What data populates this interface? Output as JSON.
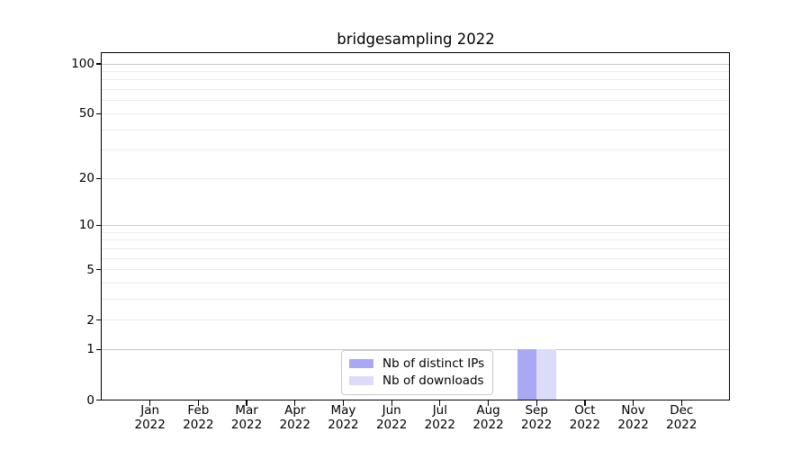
{
  "chart_data": {
    "type": "bar",
    "title": "bridgesampling 2022",
    "categories": [
      "Jan",
      "Feb",
      "Mar",
      "Apr",
      "May",
      "Jun",
      "Jul",
      "Aug",
      "Sep",
      "Oct",
      "Nov",
      "Dec"
    ],
    "year_label": "2022",
    "series": [
      {
        "name": "Nb of distinct IPs",
        "color": "#a8a8f3",
        "values": [
          0,
          0,
          0,
          0,
          0,
          0,
          0,
          0,
          1,
          0,
          0,
          0
        ]
      },
      {
        "name": "Nb of downloads",
        "color": "#dcdcf8",
        "values": [
          0,
          0,
          0,
          0,
          0,
          0,
          0,
          0,
          1,
          0,
          0,
          0
        ]
      }
    ],
    "xlabel": "",
    "ylabel": "",
    "yscale": "log1p",
    "ylim": [
      0,
      117
    ],
    "yticks": [
      0,
      1,
      2,
      5,
      10,
      20,
      50,
      100
    ],
    "major_gridlines": [
      1,
      10,
      100
    ],
    "minor_gridlines": [
      2,
      3,
      4,
      5,
      6,
      7,
      8,
      9,
      20,
      30,
      40,
      50,
      60,
      70,
      80,
      90
    ],
    "grid": "horizontal",
    "grid_color_major": "#c8c8c8",
    "grid_color_minor": "#ececec",
    "bar_group_width": 0.8,
    "legend_position": "lower center"
  }
}
